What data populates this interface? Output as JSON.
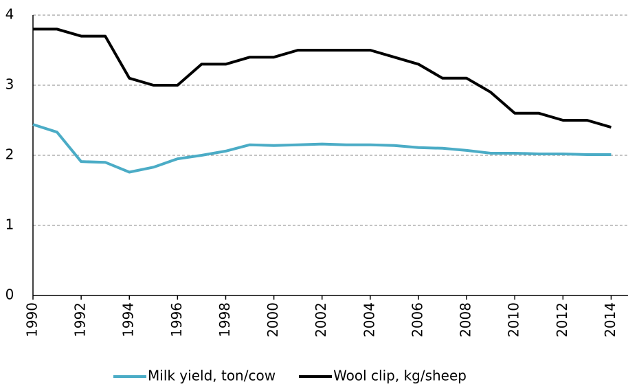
{
  "chart_data": {
    "type": "line",
    "x": [
      1990,
      1991,
      1992,
      1993,
      1994,
      1995,
      1996,
      1997,
      1998,
      1999,
      2000,
      2001,
      2002,
      2003,
      2004,
      2005,
      2006,
      2007,
      2008,
      2009,
      2010,
      2011,
      2012,
      2013,
      2014
    ],
    "series": [
      {
        "name": "Milk yield, ton/cow",
        "color": "#4bacc6",
        "values": [
          2.44,
          2.33,
          1.91,
          1.9,
          1.76,
          1.83,
          1.95,
          2.0,
          2.06,
          2.15,
          2.14,
          2.15,
          2.16,
          2.15,
          2.15,
          2.14,
          2.11,
          2.1,
          2.07,
          2.03,
          2.03,
          2.02,
          2.02,
          2.01,
          2.01
        ]
      },
      {
        "name": "Wool clip, kg/sheep",
        "color": "#000000",
        "values": [
          3.8,
          3.8,
          3.7,
          3.7,
          3.1,
          3.0,
          3.0,
          3.3,
          3.3,
          3.4,
          3.4,
          3.5,
          3.5,
          3.5,
          3.5,
          3.4,
          3.3,
          3.1,
          3.1,
          2.9,
          2.6,
          2.6,
          2.5,
          2.5,
          2.4
        ]
      }
    ],
    "xlim": [
      1990,
      2014.7
    ],
    "xticks": [
      1990,
      1992,
      1994,
      1996,
      1998,
      2000,
      2002,
      2004,
      2006,
      2008,
      2010,
      2012,
      2014
    ],
    "ylim": [
      0,
      4
    ],
    "yticks": [
      0,
      1,
      2,
      3,
      4
    ],
    "grid": true,
    "legend": "bottom"
  }
}
